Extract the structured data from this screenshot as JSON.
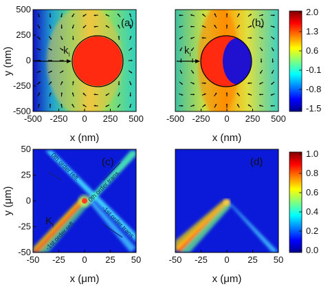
{
  "chart_data": [
    {
      "type": "heatmap",
      "panel_label": "(a)",
      "xlabel": "x (nm)",
      "ylabel": "y (nm)",
      "xlim": [
        -500,
        500
      ],
      "ylim": [
        -500,
        500
      ],
      "x_ticks": [
        "-500",
        "-250",
        "0",
        "250",
        "500"
      ],
      "y_ticks": [
        "500",
        "250",
        "0",
        "-250",
        "-500"
      ],
      "k_label": "k",
      "k_subscript": "i",
      "particle_radius_nm": 250,
      "field": "uniform high inside particle, dipole-like decay outside"
    },
    {
      "type": "heatmap",
      "panel_label": "(b)",
      "xlabel": "x (nm)",
      "xlim": [
        -500,
        500
      ],
      "ylim": [
        -500,
        500
      ],
      "x_ticks": [
        "-500",
        "-250",
        "0",
        "250",
        "500"
      ],
      "k_label": "k",
      "k_subscript": "i",
      "particle_radius_nm": 250,
      "field": "left half high, right half low inside particle"
    },
    {
      "type": "heatmap",
      "panel_label": "(c)",
      "xlabel": "x (μm)",
      "ylabel": "y (μm)",
      "xlim": [
        -50,
        50
      ],
      "ylim": [
        -50,
        50
      ],
      "x_ticks": [
        "-50",
        "-25",
        "0",
        "25",
        "50"
      ],
      "y_ticks": [
        "50",
        "25",
        "0",
        "-25",
        "-50"
      ],
      "k_label": "K",
      "k_subscript": "i",
      "annotations": [
        "0th order refl.",
        "0th order trans.",
        "-1st order refl.",
        "-1st order trans."
      ]
    },
    {
      "type": "heatmap",
      "panel_label": "(d)",
      "xlabel": "x (μm)",
      "xlim": [
        -50,
        50
      ],
      "ylim": [
        -50,
        50
      ],
      "x_ticks": [
        "-50",
        "-25",
        "0",
        "25",
        "50"
      ]
    }
  ],
  "colorbar_top": {
    "labels": [
      "2.0",
      "1.3",
      "0.6",
      "-0.1",
      "-0.8",
      "-1.5"
    ],
    "range": [
      -1.5,
      2.0
    ]
  },
  "colorbar_bottom": {
    "labels": [
      "1.0",
      "0.8",
      "0.6",
      "0.4",
      "0.2",
      "0.0"
    ],
    "range": [
      0.0,
      1.0
    ]
  },
  "colors": {
    "jet": [
      "#00008f",
      "#0000ff",
      "#00ffff",
      "#7fff7f",
      "#ffff00",
      "#ff0000",
      "#800000"
    ]
  }
}
